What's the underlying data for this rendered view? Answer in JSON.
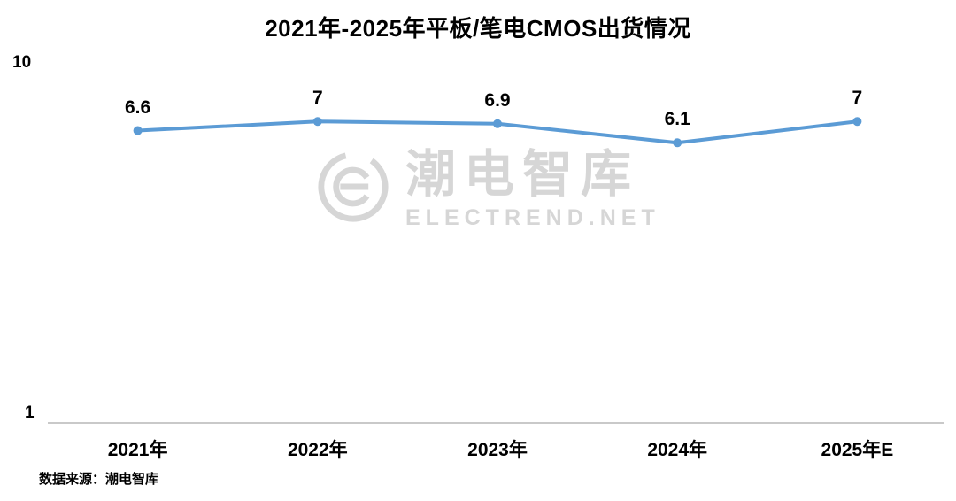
{
  "source": "数据来源：潮电智库",
  "watermark": {
    "cn": "潮电智库",
    "en": "ELECTREND.NET",
    "color": "#d6d6d6"
  },
  "chart_data": {
    "type": "line",
    "title": "2021年-2025年平板/笔电CMOS出货情况",
    "categories": [
      "2021年",
      "2022年",
      "2023年",
      "2024年",
      "2025年E"
    ],
    "values": [
      6.6,
      7,
      6.9,
      6.1,
      7
    ],
    "labels": [
      "6.6",
      "7",
      "6.9",
      "6.1",
      "7"
    ],
    "xlabel": "",
    "ylabel": "",
    "ylim": [
      1,
      10
    ],
    "yscale": "log",
    "y_ticks": [
      "10",
      "1"
    ],
    "line_color": "#5B9BD5",
    "marker": "circle",
    "grid": false,
    "legend_position": "none"
  }
}
